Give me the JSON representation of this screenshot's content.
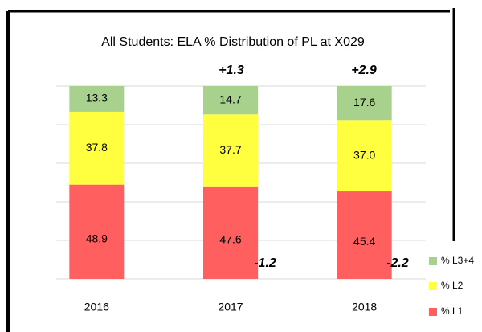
{
  "chart_data": {
    "type": "stacked_bar",
    "title": "All Students: ELA % Distribution of PL at X029",
    "categories": [
      "2016",
      "2017",
      "2018"
    ],
    "series": [
      {
        "name": "% L1",
        "color": "#ff5f5f",
        "values": [
          48.9,
          47.6,
          45.4
        ]
      },
      {
        "name": "% L2",
        "color": "#ffff40",
        "values": [
          37.8,
          37.7,
          37
        ],
        "value_labels": [
          "37.8",
          "37.7",
          "37.0"
        ]
      },
      {
        "name": "% L3+4",
        "color": "#a9d18e",
        "values": [
          13.3,
          14.7,
          17.6
        ]
      }
    ],
    "annotations": [
      "+1.3",
      "+2.9",
      "-1.2",
      "-2.2"
    ],
    "ylim": [
      0,
      100
    ],
    "yticks": [
      0,
      20,
      40,
      60,
      80,
      100
    ],
    "grid": true
  }
}
